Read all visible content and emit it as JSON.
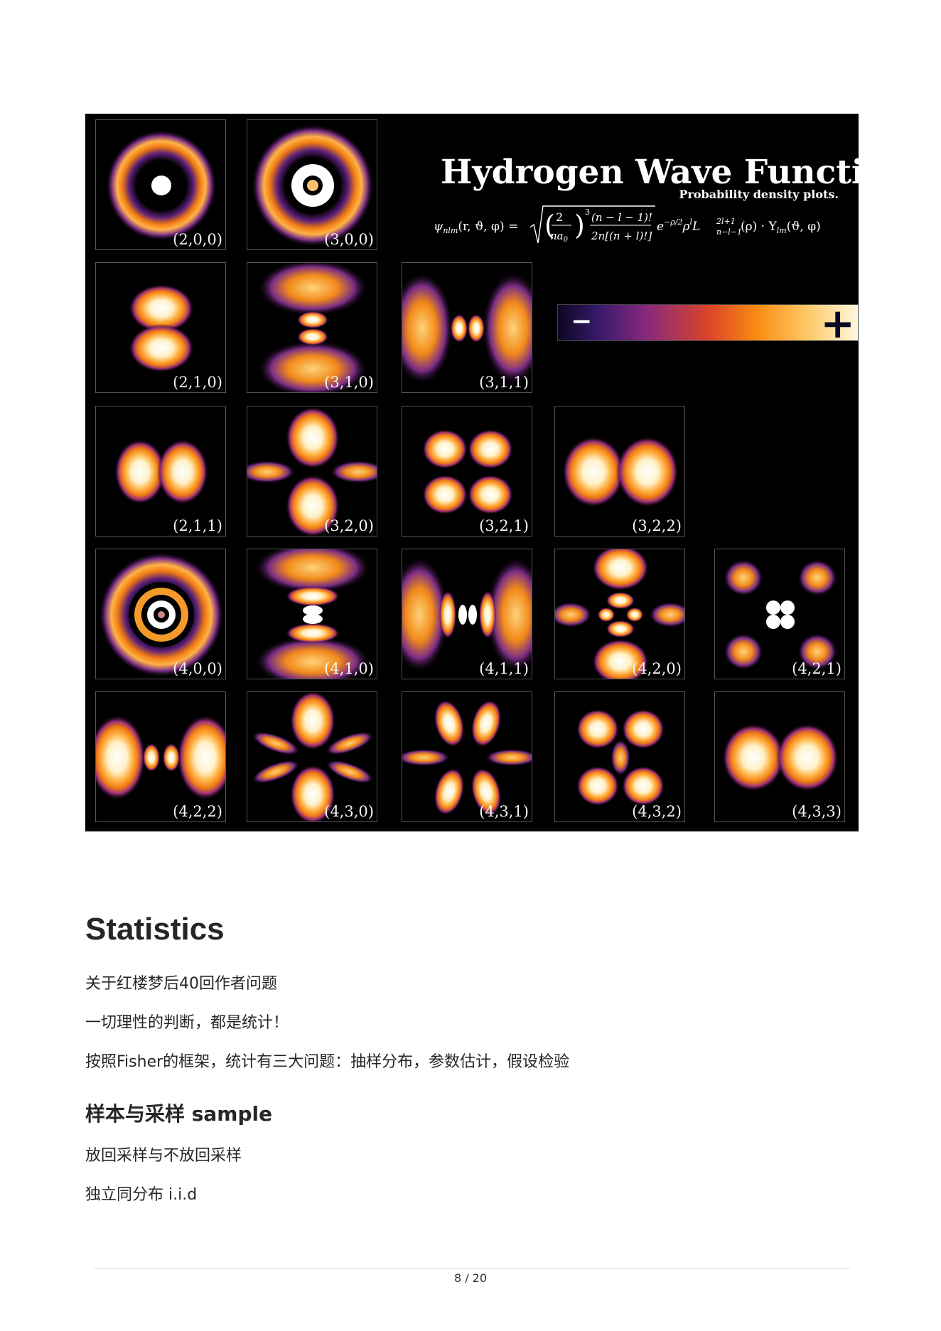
{
  "figure": {
    "title": "Hydrogen Wave Function",
    "subtitle": "Probability density plots.",
    "formula": {
      "lhs": "ψ",
      "lhs_sub": "nlm",
      "lhs_args": "(r, ϑ, φ) =",
      "frac1_num": "2",
      "frac1_den": "na",
      "frac1_den_sub": "0",
      "power": "3",
      "frac2_num": "(n − l − 1)!",
      "frac2_den": "2n[(n + l)!]",
      "tail": "e",
      "tail_exp": "−ρ/2",
      "tail2": "ρ",
      "tail2_exp": "l",
      "laguerre": "L",
      "laguerre_sup": "2l+1",
      "laguerre_sub": "n−l−1",
      "rest": "(ρ) · Y",
      "rest_sub": "lm",
      "rest_args": "(ϑ, φ)"
    },
    "colorbar": {
      "minus": "−",
      "plus": "+",
      "colors": [
        "#0b0720",
        "#3a1a6e",
        "#8a2a7a",
        "#d9432a",
        "#f98a10",
        "#fdc866",
        "#fff7df"
      ]
    },
    "tiles": [
      {
        "label": "(2,0,0)"
      },
      {
        "label": "(3,0,0)"
      },
      {
        "label": "(2,1,0)"
      },
      {
        "label": "(3,1,0)"
      },
      {
        "label": "(3,1,1)"
      },
      {
        "label": "(2,1,1)"
      },
      {
        "label": "(3,2,0)"
      },
      {
        "label": "(3,2,1)"
      },
      {
        "label": "(3,2,2)"
      },
      {
        "label": "(4,0,0)"
      },
      {
        "label": "(4,1,0)"
      },
      {
        "label": "(4,1,1)"
      },
      {
        "label": "(4,2,0)"
      },
      {
        "label": "(4,2,1)"
      },
      {
        "label": "(4,2,2)"
      },
      {
        "label": "(4,3,0)"
      },
      {
        "label": "(4,3,1)"
      },
      {
        "label": "(4,3,2)"
      },
      {
        "label": "(4,3,3)"
      }
    ]
  },
  "heading1": "Statistics",
  "para1": "关于红楼梦后40回作者问题",
  "para2": "一切理性的判断，都是统计！",
  "para3": "按照Fisher的框架，统计有三大问题：抽样分布，参数估计，假设检验",
  "heading2": "样本与采样 sample",
  "para4": "放回采样与不放回采样",
  "para5": "独立同分布 i.i.d",
  "page_number": "8 / 20"
}
